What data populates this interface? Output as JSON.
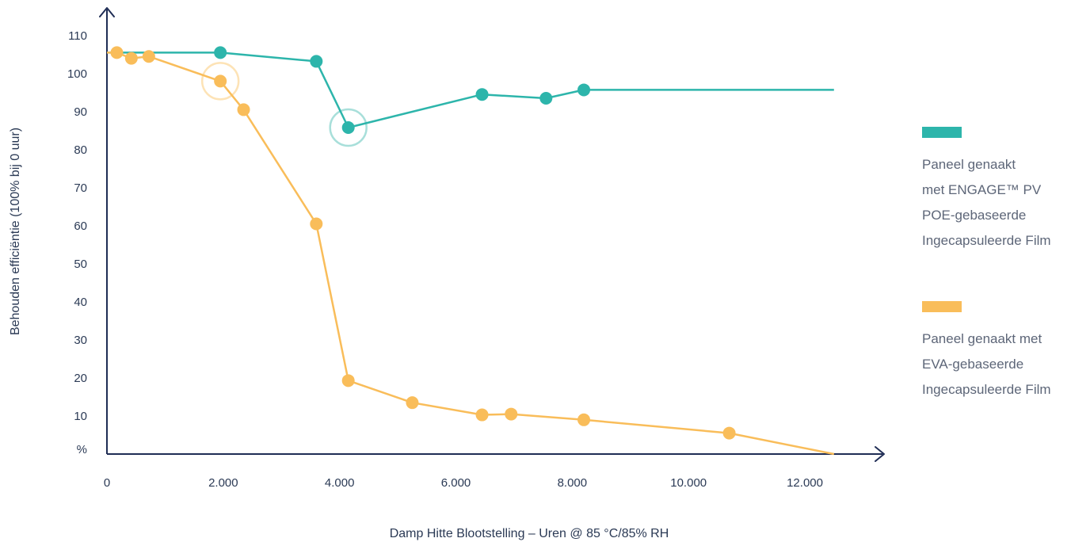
{
  "chart_data": {
    "type": "line",
    "xlabel": "Damp Hitte Blootstelling – Uren @ 85 °C/85% RH",
    "ylabel": "Behouden efficiëntie (100% bij 0 uur)",
    "xlim": [
      0,
      12500
    ],
    "ylim": [
      0,
      110
    ],
    "x_ticks": [
      "0",
      "2.000",
      "4.000",
      "6.000",
      "8.000",
      "10.000",
      "12.000"
    ],
    "y_ticks": [
      "%",
      "10",
      "20",
      "30",
      "40",
      "50",
      "60",
      "70",
      "80",
      "90",
      "100",
      "110"
    ],
    "grid": false,
    "legend_position": "right",
    "series": [
      {
        "name": "Paneel genaakt\nmet ENGAGE™ PV\nPOE-gebaseerde\nIngecapsuleerde Film",
        "color": "#2db5ab",
        "highlight_color": "#a8dfda",
        "points": [
          {
            "x": 0,
            "y": 105.5,
            "marker": false
          },
          {
            "x": 1950,
            "y": 105.5,
            "marker": true
          },
          {
            "x": 3600,
            "y": 103.2,
            "marker": true
          },
          {
            "x": 4150,
            "y": 85.8,
            "marker": true,
            "highlight": true
          },
          {
            "x": 6450,
            "y": 94.5,
            "marker": true
          },
          {
            "x": 7550,
            "y": 93.5,
            "marker": true
          },
          {
            "x": 8200,
            "y": 95.7,
            "marker": true
          },
          {
            "x": 12500,
            "y": 95.7,
            "marker": false
          }
        ]
      },
      {
        "name": "Paneel genaakt met\nEVA-gebaseerde\nIngecapsuleerde Film",
        "color": "#f9bd5a",
        "highlight_color": "#fde3b6",
        "points": [
          {
            "x": 0,
            "y": 105.5,
            "marker": false
          },
          {
            "x": 170,
            "y": 105.5,
            "marker": true
          },
          {
            "x": 420,
            "y": 104.0,
            "marker": true
          },
          {
            "x": 720,
            "y": 104.5,
            "marker": true
          },
          {
            "x": 1950,
            "y": 98.0,
            "marker": true,
            "highlight": true
          },
          {
            "x": 2350,
            "y": 90.5,
            "marker": true
          },
          {
            "x": 3600,
            "y": 60.5,
            "marker": true
          },
          {
            "x": 4150,
            "y": 19.3,
            "marker": true
          },
          {
            "x": 5250,
            "y": 13.5,
            "marker": true
          },
          {
            "x": 6450,
            "y": 10.3,
            "marker": true
          },
          {
            "x": 6950,
            "y": 10.5,
            "marker": true
          },
          {
            "x": 8200,
            "y": 9.0,
            "marker": true
          },
          {
            "x": 10700,
            "y": 5.5,
            "marker": true
          },
          {
            "x": 12500,
            "y": 0,
            "marker": false
          }
        ]
      }
    ]
  }
}
